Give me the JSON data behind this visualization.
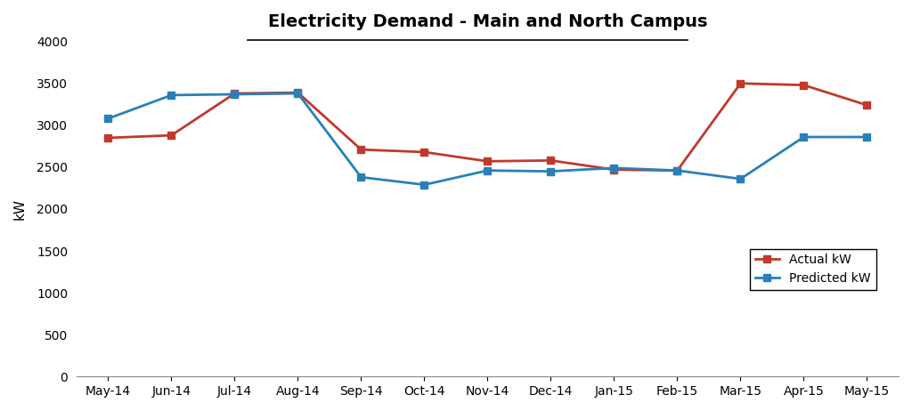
{
  "title": "Electricity Demand - Main and North Campus",
  "ylabel": "kW",
  "categories": [
    "May-14",
    "Jun-14",
    "Jul-14",
    "Aug-14",
    "Sep-14",
    "Oct-14",
    "Nov-14",
    "Dec-14",
    "Jan-15",
    "Feb-15",
    "Mar-15",
    "Apr-15",
    "May-15"
  ],
  "actual_kw": [
    2850,
    2880,
    3380,
    3390,
    2710,
    2680,
    2570,
    2580,
    2470,
    2460,
    3500,
    3480,
    3240
  ],
  "predicted_kw": [
    3080,
    3360,
    3370,
    3380,
    2380,
    2290,
    2460,
    2450,
    2490,
    2460,
    2360,
    2860,
    2860
  ],
  "actual_color": "#C0392B",
  "predicted_color": "#2980B9",
  "marker": "s",
  "marker_size": 6,
  "ylim": [
    0,
    4000
  ],
  "yticks": [
    0,
    500,
    1000,
    1500,
    2000,
    2500,
    3000,
    3500,
    4000
  ],
  "legend_actual": "Actual kW",
  "legend_predicted": "Predicted kW",
  "bg_color": "#FFFFFF",
  "title_fontsize": 14,
  "axis_fontsize": 11,
  "tick_fontsize": 10,
  "legend_fontsize": 10
}
